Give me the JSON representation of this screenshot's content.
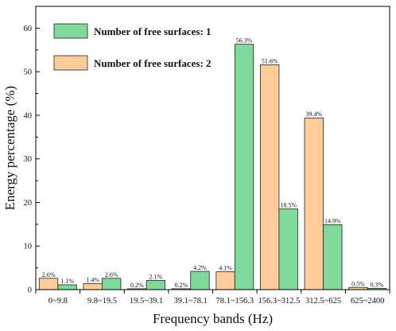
{
  "chart_data": {
    "type": "bar",
    "xlabel": "Frequency bands (Hz)",
    "ylabel": "Energy percentage (%)",
    "ylim": [
      0,
      65
    ],
    "yticks": [
      0,
      10,
      20,
      30,
      40,
      50,
      60
    ],
    "grid": false,
    "legend_position": "top-left",
    "categories": [
      "0~9.8",
      "9.8~19.5",
      "19.5~39.1",
      "39.1~78.1",
      "78.1~156.3",
      "156.3~312.5",
      "312.5~625",
      "625~2400"
    ],
    "series": [
      {
        "name": "Number of free surfaces: 2",
        "color": "#FFCC99",
        "values": [
          2.6,
          1.4,
          0.2,
          0.2,
          4.1,
          51.6,
          39.4,
          0.5
        ],
        "labels": [
          "2.6%",
          "1.4%",
          "0.2%",
          "0.2%",
          "4.1%",
          "51.6%",
          "39.4%",
          "0.5%"
        ]
      },
      {
        "name": "Number of free surfaces: 1",
        "color": "#7FD99A",
        "values": [
          1.1,
          2.6,
          2.1,
          4.2,
          56.3,
          18.5,
          14.9,
          0.3
        ],
        "labels": [
          "1.1%",
          "2.6%",
          "2.1%",
          "4.2%",
          "56.3%",
          "18.5%",
          "14.9%",
          "0.3%"
        ]
      }
    ],
    "legend_order": [
      1,
      0
    ]
  }
}
